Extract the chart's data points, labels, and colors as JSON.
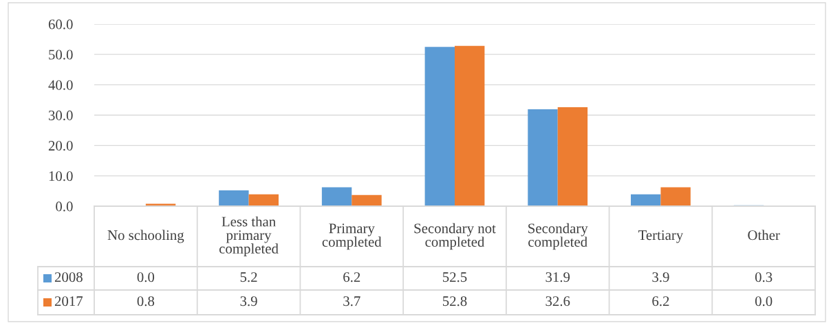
{
  "chart_data": {
    "type": "bar",
    "categories": [
      "No schooling",
      "Less than primary completed",
      "Primary completed",
      "Secondary not completed",
      "Secondary completed",
      "Tertiary",
      "Other"
    ],
    "series": [
      {
        "name": "2008",
        "color": "#5b9bd5",
        "values": [
          0.0,
          5.2,
          6.2,
          52.5,
          31.9,
          3.9,
          0.3
        ],
        "value_labels": [
          "0.0",
          "5.2",
          "6.2",
          "52.5",
          "31.9",
          "3.9",
          "0.3"
        ]
      },
      {
        "name": "2017",
        "color": "#ed7d31",
        "values": [
          0.8,
          3.9,
          3.7,
          52.8,
          32.6,
          6.2,
          0.0
        ],
        "value_labels": [
          "0.8",
          "3.9",
          "3.7",
          "52.8",
          "32.6",
          "6.2",
          "0.0"
        ]
      }
    ],
    "ylim": [
      0,
      60
    ],
    "yticks": [
      {
        "value": 0,
        "label": "0.0"
      },
      {
        "value": 10,
        "label": "10.0"
      },
      {
        "value": 20,
        "label": "20.0"
      },
      {
        "value": 30,
        "label": "30.0"
      },
      {
        "value": 40,
        "label": "40.0"
      },
      {
        "value": 50,
        "label": "50.0"
      },
      {
        "value": 60,
        "label": "60.0"
      }
    ],
    "grid": "y",
    "legend": "bottom"
  }
}
